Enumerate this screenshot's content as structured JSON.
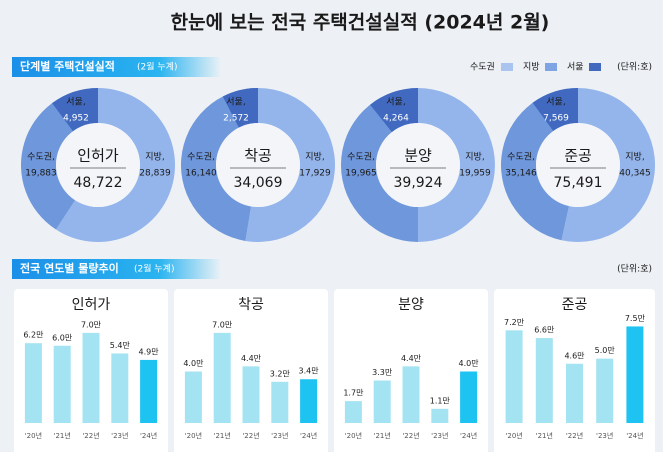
{
  "title": "한눈에 보는 전국 주택건설실적 (2024년 2월)",
  "section1": {
    "title": "단계별 주택건설실적",
    "subtitle": "(2월 누계)",
    "unit": "(단위:호)"
  },
  "legend": [
    {
      "name": "수도권",
      "color": "#a9c4ef"
    },
    {
      "name": "지방",
      "color": "#7ea4e4"
    },
    {
      "name": "서울",
      "color": "#4169c0"
    }
  ],
  "section2": {
    "title": "전국 연도별 물량추이",
    "subtitle": "(2월 누계)",
    "unit": "(단위:호)"
  },
  "chart_data": [
    {
      "type": "donut",
      "title": "인허가",
      "total": 48722,
      "total_label": "48,722",
      "labels": [
        "수도권,",
        "지방,",
        "서울,"
      ],
      "colors": [
        "#6f97dc",
        "#94b5ec",
        "#4169c0"
      ],
      "values": [
        19883,
        28839,
        4952
      ],
      "value_labels": [
        "19,883",
        "28,839",
        "4,952"
      ]
    },
    {
      "type": "donut",
      "title": "착공",
      "total": 34069,
      "total_label": "34,069",
      "labels": [
        "수도권,",
        "지방,",
        "서울,"
      ],
      "colors": [
        "#6f97dc",
        "#94b5ec",
        "#4169c0"
      ],
      "values": [
        16140,
        17929,
        2572
      ],
      "value_labels": [
        "16,140",
        "17,929",
        "2,572"
      ]
    },
    {
      "type": "donut",
      "title": "분양",
      "total": 39924,
      "total_label": "39,924",
      "labels": [
        "수도권,",
        "지방,",
        "서울,"
      ],
      "colors": [
        "#6f97dc",
        "#94b5ec",
        "#4169c0"
      ],
      "values": [
        19965,
        19959,
        4264
      ],
      "value_labels": [
        "19,965",
        "19,959",
        "4,264"
      ]
    },
    {
      "type": "donut",
      "title": "준공",
      "total": 75491,
      "total_label": "75,491",
      "labels": [
        "수도권,",
        "지방,",
        "서울,"
      ],
      "colors": [
        "#6f97dc",
        "#94b5ec",
        "#4169c0"
      ],
      "values": [
        35146,
        40345,
        7569
      ],
      "value_labels": [
        "35,146",
        "40,345",
        "7,569"
      ]
    },
    {
      "type": "bar",
      "title": "인허가",
      "categories": [
        "'20년",
        "'21년",
        "'22년",
        "'23년",
        "'24년"
      ],
      "values": [
        6.2,
        6.0,
        7.0,
        5.4,
        4.9
      ],
      "value_labels": [
        "6.2만",
        "6.0만",
        "7.0만",
        "5.4만",
        "4.9만"
      ],
      "colors": [
        "#a4e3f2",
        "#a4e3f2",
        "#a4e3f2",
        "#a4e3f2",
        "#1ec3f2"
      ],
      "ylim": [
        0,
        8
      ]
    },
    {
      "type": "bar",
      "title": "착공",
      "categories": [
        "'20년",
        "'21년",
        "'22년",
        "'23년",
        "'24년"
      ],
      "values": [
        4.0,
        7.0,
        4.4,
        3.2,
        3.4
      ],
      "value_labels": [
        "4.0만",
        "7.0만",
        "4.4만",
        "3.2만",
        "3.4만"
      ],
      "colors": [
        "#a4e3f2",
        "#a4e3f2",
        "#a4e3f2",
        "#a4e3f2",
        "#1ec3f2"
      ],
      "ylim": [
        0,
        8
      ]
    },
    {
      "type": "bar",
      "title": "분양",
      "categories": [
        "'20년",
        "'21년",
        "'22년",
        "'23년",
        "'24년"
      ],
      "values": [
        1.7,
        3.3,
        4.4,
        1.1,
        4.0
      ],
      "value_labels": [
        "1.7만",
        "3.3만",
        "4.4만",
        "1.1만",
        "4.0만"
      ],
      "colors": [
        "#a4e3f2",
        "#a4e3f2",
        "#a4e3f2",
        "#a4e3f2",
        "#1ec3f2"
      ],
      "ylim": [
        0,
        8
      ]
    },
    {
      "type": "bar",
      "title": "준공",
      "categories": [
        "'20년",
        "'21년",
        "'22년",
        "'23년",
        "'24년"
      ],
      "values": [
        7.2,
        6.6,
        4.6,
        5.0,
        7.5
      ],
      "value_labels": [
        "7.2만",
        "6.6만",
        "4.6만",
        "5.0만",
        "7.5만"
      ],
      "colors": [
        "#a4e3f2",
        "#a4e3f2",
        "#a4e3f2",
        "#a4e3f2",
        "#1ec3f2"
      ],
      "ylim": [
        0,
        8
      ]
    }
  ]
}
